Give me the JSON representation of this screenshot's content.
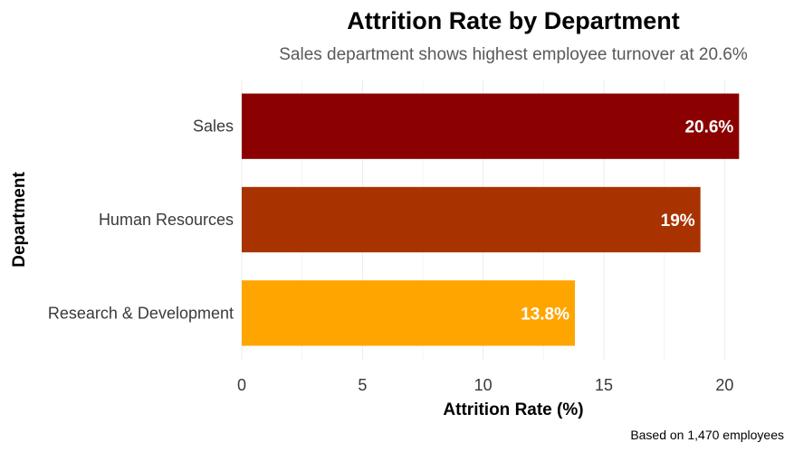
{
  "chart_data": {
    "type": "bar",
    "orientation": "horizontal",
    "title": "Attrition Rate by Department",
    "subtitle": "Sales department shows highest employee turnover at 20.6%",
    "xlabel": "Attrition Rate (%)",
    "ylabel": "Department",
    "caption": "Based on 1,470 employees",
    "categories": [
      "Sales",
      "Human Resources",
      "Research & Development"
    ],
    "values": [
      20.6,
      19.0,
      13.8
    ],
    "data_labels": [
      "20.6%",
      "19%",
      "13.8%"
    ],
    "colors": [
      "#8b0000",
      "#a83300",
      "#ffa500"
    ],
    "xlim": [
      0,
      22.5
    ],
    "xticks": [
      0,
      5,
      10,
      15,
      20
    ],
    "grid": true,
    "legend": "none"
  }
}
